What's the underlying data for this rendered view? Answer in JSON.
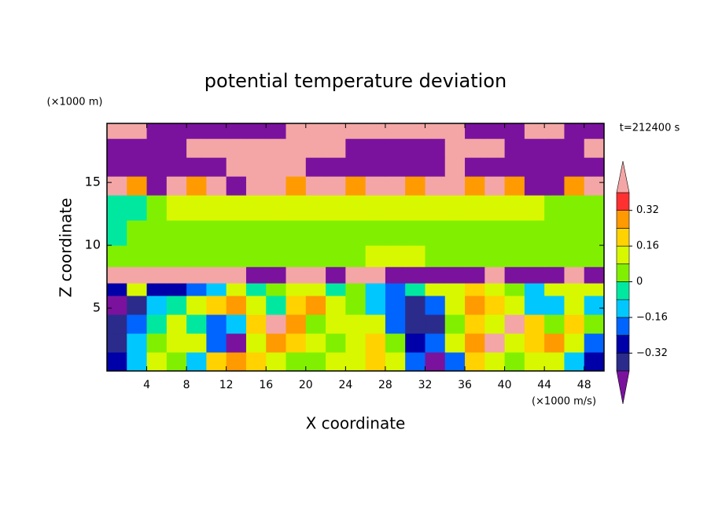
{
  "chart_data": {
    "type": "contour",
    "title": "potential temperature deviation",
    "y_unit": "(×1000 m)",
    "x_unit": "(×1000 m/s)",
    "x_label": "X coordinate",
    "y_label": "Z coordinate",
    "annotation": "t=212400 s",
    "xlim": [
      0,
      50
    ],
    "ylim": [
      0,
      19.7
    ],
    "xticks": [
      4,
      8,
      12,
      16,
      20,
      24,
      28,
      32,
      36,
      40,
      44,
      48
    ],
    "yticks": [
      5,
      10,
      15
    ],
    "field": {
      "x_edges": [
        0,
        2,
        4,
        6,
        8,
        10,
        12,
        14,
        16,
        18,
        20,
        22,
        24,
        26,
        28,
        30,
        32,
        34,
        36,
        38,
        40,
        42,
        44,
        46,
        48,
        50
      ],
      "y_edges": [
        0,
        1.5,
        3,
        4.5,
        6,
        7,
        8.3,
        10,
        12,
        14,
        15.5,
        17,
        18.5,
        19.7
      ],
      "values": [
        [
          -0.3,
          -0.1,
          0.1,
          0.05,
          -0.1,
          0.2,
          0.3,
          0.2,
          0.1,
          0.05,
          0,
          0.1,
          0.15,
          0.2,
          0.1,
          -0.2,
          -0.45,
          -0.2,
          0.2,
          0.1,
          0.0,
          0.15,
          0.1,
          -0.1,
          -0.25
        ],
        [
          -0.35,
          -0.15,
          0.05,
          0.15,
          0.1,
          -0.2,
          -0.45,
          0.1,
          0.3,
          0.2,
          0.1,
          0.05,
          0.1,
          0.2,
          0.05,
          -0.3,
          -0.2,
          0.1,
          0.3,
          0.45,
          0.1,
          0.2,
          0.3,
          0.1,
          -0.2
        ],
        [
          -0.4,
          -0.2,
          -0.05,
          0.1,
          -0.05,
          -0.2,
          -0.1,
          0.2,
          0.45,
          0.25,
          0.05,
          0.1,
          0.15,
          0.1,
          -0.2,
          -0.35,
          -0.35,
          0,
          0.2,
          0.1,
          0.45,
          0.2,
          0,
          0.2,
          0.0
        ],
        [
          -0.45,
          -0.35,
          -0.15,
          -0.05,
          0.1,
          0.2,
          0.25,
          0.1,
          -0.05,
          0.2,
          0.3,
          0.1,
          0.0,
          -0.1,
          -0.2,
          -0.35,
          -0.2,
          0.1,
          0.25,
          0.2,
          0.1,
          -0.1,
          -0.15,
          0.1,
          -0.1
        ],
        [
          -0.3,
          0.1,
          -0.3,
          -0.25,
          -0.2,
          -0.15,
          0.1,
          -0.05,
          0.05,
          0.15,
          0.1,
          -0.05,
          0.0,
          -0.1,
          -0.2,
          -0.05,
          0.1,
          0.15,
          0.2,
          0.1,
          0.0,
          -0.1,
          0.1,
          0.15,
          0.1
        ],
        [
          0.5,
          0.5,
          0.5,
          0.5,
          0.5,
          0.5,
          0.5,
          -0.5,
          -0.5,
          0.5,
          0.5,
          -0.5,
          0.5,
          0.5,
          -0.5,
          -0.5,
          -0.5,
          -0.5,
          -0.5,
          0.5,
          -0.5,
          -0.5,
          -0.5,
          0.5,
          -0.5
        ],
        [
          0.02,
          0.02,
          0.03,
          0.02,
          0.01,
          0.03,
          0.02,
          0.02,
          0.03,
          0.05,
          0.04,
          0.02,
          0.03,
          0.1,
          0.12,
          0.1,
          0.05,
          0.03,
          0.02,
          0.02,
          0.03,
          0.02,
          0.02,
          0.01,
          0.02
        ],
        [
          -0.02,
          0.03,
          0.02,
          0.02,
          0.03,
          0.05,
          0.04,
          0.03,
          0.02,
          0.03,
          0.04,
          0.03,
          0.05,
          0.05,
          0.06,
          0.04,
          0.03,
          0.05,
          0.03,
          0.02,
          0.03,
          0.06,
          0.03,
          0.02,
          0.01
        ],
        [
          -0.05,
          -0.02,
          0.05,
          0.1,
          0.09,
          0.08,
          0.1,
          0.1,
          0.1,
          0.12,
          0.11,
          0.1,
          0.12,
          0.1,
          0.09,
          0.1,
          0.1,
          0.1,
          0.09,
          0.08,
          0.1,
          0.09,
          0.05,
          0.04,
          0.02
        ],
        [
          0.45,
          0.3,
          -0.45,
          0.45,
          0.3,
          0.45,
          -0.45,
          0.45,
          0.45,
          0.3,
          0.45,
          0.45,
          0.3,
          0.45,
          0.45,
          0.3,
          0.45,
          0.45,
          0.3,
          0.45,
          0.3,
          -0.45,
          -0.45,
          0.3,
          0.45
        ],
        [
          -0.5,
          -0.5,
          -0.5,
          -0.5,
          -0.5,
          -0.5,
          0.5,
          0.5,
          0.5,
          0.5,
          -0.5,
          -0.5,
          -0.5,
          -0.5,
          -0.5,
          -0.5,
          -0.5,
          0.5,
          -0.5,
          -0.5,
          -0.5,
          -0.5,
          -0.5,
          -0.5,
          -0.5
        ],
        [
          -0.5,
          -0.5,
          -0.5,
          -0.5,
          0.5,
          0.5,
          0.5,
          0.5,
          0.5,
          0.5,
          0.5,
          0.5,
          -0.5,
          -0.5,
          -0.5,
          -0.5,
          -0.5,
          0.5,
          0.5,
          0.5,
          -0.5,
          -0.5,
          -0.5,
          -0.5,
          0.5
        ],
        [
          0.5,
          0.5,
          -0.5,
          -0.5,
          -0.5,
          -0.5,
          -0.5,
          -0.5,
          -0.5,
          0.5,
          0.5,
          0.5,
          0.5,
          0.5,
          0.5,
          0.5,
          0.5,
          0.5,
          -0.5,
          -0.5,
          -0.5,
          0.5,
          0.5,
          -0.5,
          -0.5
        ]
      ]
    },
    "colorbar": {
      "levels": [
        -0.4,
        -0.32,
        -0.24,
        -0.16,
        -0.08,
        0,
        0.08,
        0.16,
        0.24,
        0.32,
        0.4
      ],
      "colors": [
        "#7a129e",
        "#2b2b8c",
        "#0000a8",
        "#0064ff",
        "#00c8ff",
        "#00e8a0",
        "#80f000",
        "#d8f800",
        "#ffd200",
        "#ff9a00",
        "#ff3030",
        "#f4a6a6"
      ],
      "ticks": [
        {
          "value": -0.32,
          "label": "−0.32"
        },
        {
          "value": -0.16,
          "label": "−0.16"
        },
        0,
        0.16,
        0.32
      ]
    }
  }
}
